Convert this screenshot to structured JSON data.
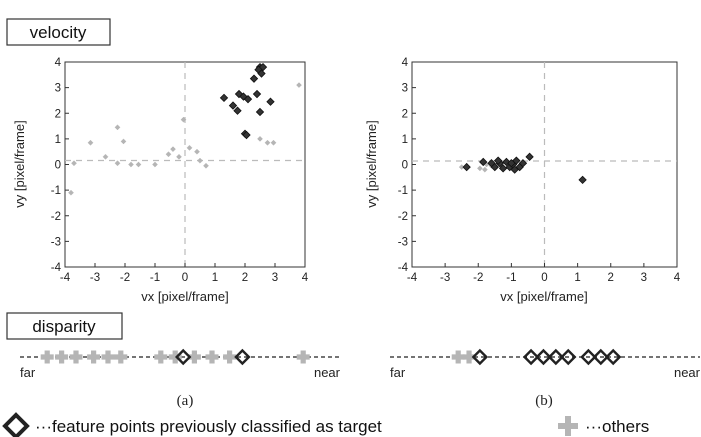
{
  "labels": {
    "velocity": "velocity",
    "disparity": "disparity",
    "far": "far",
    "near": "near",
    "panel_a": "(a)",
    "panel_b": "(b)",
    "legend_target": "···feature points previously classified as target",
    "legend_others": "···others"
  },
  "colors": {
    "target": "#333333",
    "others": "#b5b5b5",
    "dashed": "#bbbbbb"
  },
  "chart_data": [
    {
      "type": "scatter",
      "panel": "(a)",
      "xlabel": "vx [pixel/frame]",
      "ylabel": "vy [pixel/frame]",
      "xlim": [
        -4,
        4
      ],
      "ylim": [
        -4,
        4
      ],
      "xticks": [
        "-4",
        "-3",
        "-2",
        "-1",
        "0",
        "1",
        "2",
        "3",
        "4"
      ],
      "yticks": [
        "4",
        "3",
        "2",
        "1",
        "0",
        "-1",
        "-2",
        "-3",
        "-4"
      ],
      "series": [
        {
          "name": "feature points previously classified as target",
          "points": [
            [
              2.5,
              3.8
            ],
            [
              2.55,
              3.75
            ],
            [
              2.6,
              3.8
            ],
            [
              2.45,
              3.7
            ],
            [
              2.3,
              3.35
            ],
            [
              2.55,
              3.55
            ],
            [
              1.3,
              2.6
            ],
            [
              1.6,
              2.3
            ],
            [
              1.8,
              2.75
            ],
            [
              1.95,
              2.65
            ],
            [
              1.75,
              2.1
            ],
            [
              2.1,
              2.55
            ],
            [
              2.4,
              2.75
            ],
            [
              2.5,
              2.05
            ],
            [
              2.85,
              2.45
            ],
            [
              2.0,
              1.2
            ],
            [
              2.05,
              1.15
            ]
          ]
        },
        {
          "name": "others",
          "points": [
            [
              -3.8,
              -1.1
            ],
            [
              -3.7,
              0.05
            ],
            [
              -3.15,
              0.85
            ],
            [
              -2.65,
              0.3
            ],
            [
              -2.25,
              1.45
            ],
            [
              -2.05,
              0.9
            ],
            [
              -2.25,
              0.05
            ],
            [
              -1.8,
              0.0
            ],
            [
              -1.55,
              0.0
            ],
            [
              -1.0,
              0.0
            ],
            [
              -0.55,
              0.4
            ],
            [
              -0.4,
              0.6
            ],
            [
              -0.2,
              0.3
            ],
            [
              -0.05,
              1.75
            ],
            [
              0.15,
              0.65
            ],
            [
              0.4,
              0.5
            ],
            [
              0.5,
              0.15
            ],
            [
              0.7,
              -0.05
            ],
            [
              2.5,
              1.0
            ],
            [
              2.75,
              0.85
            ],
            [
              2.95,
              0.85
            ],
            [
              3.8,
              3.1
            ]
          ]
        }
      ]
    },
    {
      "type": "scatter",
      "panel": "(b)",
      "xlabel": "vx [pixel/frame]",
      "ylabel": "vy [pixel/frame]",
      "xlim": [
        -4,
        4
      ],
      "ylim": [
        -4,
        4
      ],
      "xticks": [
        "-4",
        "-3",
        "-2",
        "-1",
        "0",
        "1",
        "2",
        "3",
        "4"
      ],
      "yticks": [
        "4",
        "3",
        "2",
        "1",
        "0",
        "-1",
        "-2",
        "-3",
        "-4"
      ],
      "series": [
        {
          "name": "feature points previously classified as target",
          "points": [
            [
              -2.35,
              -0.1
            ],
            [
              -1.85,
              0.1
            ],
            [
              -1.6,
              0.05
            ],
            [
              -1.5,
              -0.1
            ],
            [
              -1.35,
              0.05
            ],
            [
              -1.25,
              -0.15
            ],
            [
              -1.15,
              0.1
            ],
            [
              -1.05,
              -0.1
            ],
            [
              -0.95,
              0.0
            ],
            [
              -0.85,
              0.15
            ],
            [
              -0.9,
              -0.2
            ],
            [
              -0.75,
              -0.1
            ],
            [
              -0.65,
              0.05
            ],
            [
              -0.45,
              0.3
            ],
            [
              -1.4,
              0.15
            ],
            [
              -1.0,
              0.05
            ],
            [
              1.15,
              -0.6
            ]
          ]
        },
        {
          "name": "others",
          "points": [
            [
              -2.5,
              -0.1
            ],
            [
              -1.95,
              -0.15
            ],
            [
              -1.75,
              0.0
            ],
            [
              -1.6,
              -0.05
            ],
            [
              -1.8,
              -0.2
            ]
          ]
        }
      ]
    },
    {
      "type": "strip",
      "panel": "(a)",
      "axis": [
        "far",
        "near"
      ],
      "series": [
        {
          "name": "feature points previously classified as target",
          "positions": [
            0.51,
            0.695
          ]
        },
        {
          "name": "others",
          "positions": [
            0.085,
            0.13,
            0.175,
            0.23,
            0.275,
            0.315,
            0.44,
            0.485,
            0.545,
            0.6,
            0.655,
            0.885
          ]
        }
      ]
    },
    {
      "type": "strip",
      "panel": "(b)",
      "axis": [
        "far",
        "near"
      ],
      "series": [
        {
          "name": "feature points previously classified as target",
          "positions": [
            0.29,
            0.455,
            0.495,
            0.535,
            0.575,
            0.64,
            0.68,
            0.72
          ]
        },
        {
          "name": "others",
          "positions": [
            0.22,
            0.255
          ]
        }
      ]
    }
  ]
}
